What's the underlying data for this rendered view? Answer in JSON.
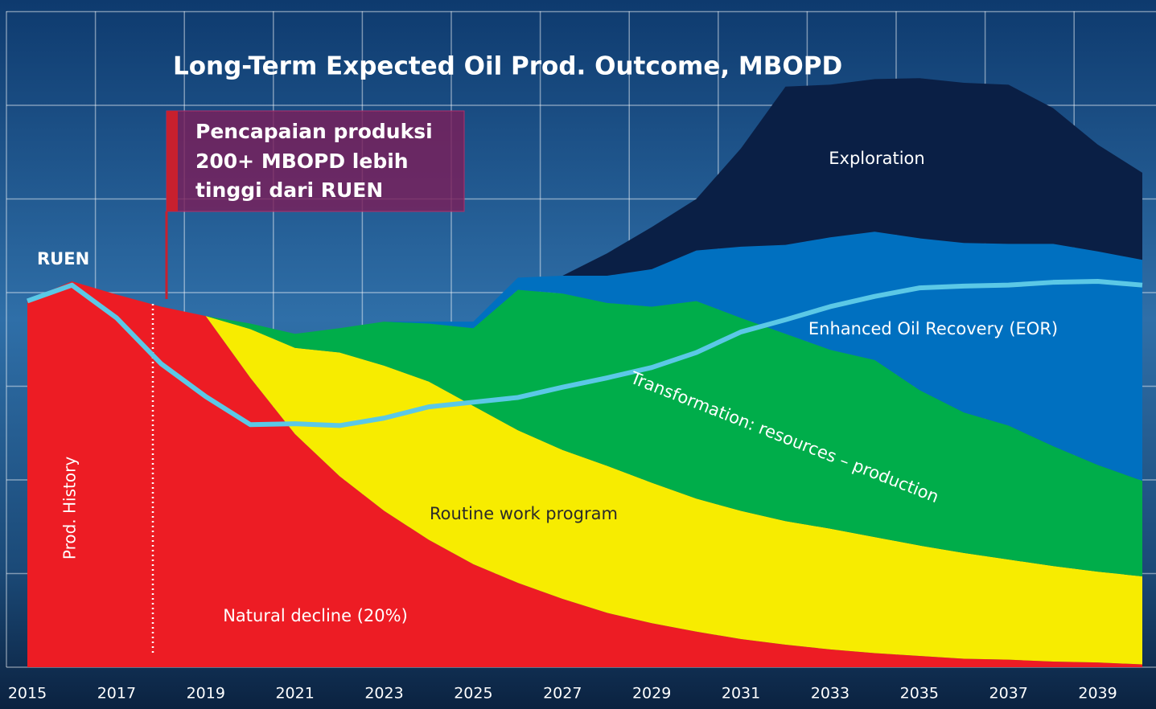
{
  "chart_data": {
    "type": "stacked_area",
    "title": "Long-Term Expected Oil Prod. Outcome, MBOPD",
    "annotation": {
      "lines": [
        "Pencapaian produksi",
        "200+ MBOPD lebih",
        "tinggi dari RUEN"
      ]
    },
    "history_label": "Prod. History",
    "x": [
      2015,
      2016,
      2017,
      2018,
      2019,
      2020,
      2021,
      2022,
      2023,
      2024,
      2025,
      2026,
      2027,
      2028,
      2029,
      2030,
      2031,
      2032,
      2033,
      2034,
      2035,
      2036,
      2037,
      2038,
      2039,
      2040
    ],
    "xlim": [
      2015,
      2040
    ],
    "xticks": [
      2015,
      2017,
      2019,
      2021,
      2023,
      2025,
      2027,
      2029,
      2031,
      2033,
      2035,
      2037,
      2039
    ],
    "ylim": [
      0,
      7
    ],
    "yticks": [
      0,
      1,
      2,
      3,
      4,
      5,
      6,
      7
    ],
    "grid": true,
    "series": [
      {
        "name": "Natural decline (20%)",
        "color": "#ed1c24",
        "values": [
          3.92,
          4.12,
          3.98,
          3.85,
          3.75,
          3.09,
          2.49,
          2.04,
          1.67,
          1.36,
          1.1,
          0.9,
          0.73,
          0.58,
          0.47,
          0.38,
          0.3,
          0.24,
          0.19,
          0.15,
          0.12,
          0.09,
          0.08,
          0.06,
          0.05,
          0.03
        ]
      },
      {
        "name": "Routine work program",
        "color": "#f7ec00",
        "values": [
          0,
          0,
          0,
          0,
          0,
          0.52,
          0.92,
          1.32,
          1.55,
          1.69,
          1.69,
          1.63,
          1.59,
          1.57,
          1.5,
          1.42,
          1.37,
          1.32,
          1.29,
          1.24,
          1.18,
          1.13,
          1.07,
          1.02,
          0.97,
          0.94
        ]
      },
      {
        "name": "Transformation: resources – production",
        "color": "#00ad4a",
        "values": [
          0,
          0,
          0,
          0,
          0,
          0.06,
          0.15,
          0.26,
          0.47,
          0.62,
          0.83,
          1.5,
          1.67,
          1.74,
          1.88,
          2.11,
          2.06,
          2.0,
          1.91,
          1.89,
          1.66,
          1.5,
          1.43,
          1.28,
          1.14,
          1.02
        ]
      },
      {
        "name": "Enhanced Oil Recovery (EOR)",
        "color": "#0070c0",
        "values": [
          0,
          0,
          0,
          0,
          0,
          0,
          0,
          0,
          0,
          0.02,
          0.07,
          0.13,
          0.19,
          0.29,
          0.4,
          0.54,
          0.76,
          0.95,
          1.2,
          1.37,
          1.62,
          1.81,
          1.94,
          2.16,
          2.28,
          2.36
        ]
      },
      {
        "name": "Exploration",
        "color": "#0a1f45",
        "values": [
          0,
          0,
          0,
          0,
          0,
          0,
          0,
          0,
          0,
          0,
          0,
          0,
          0,
          0.24,
          0.45,
          0.55,
          1.05,
          1.69,
          1.63,
          1.63,
          1.71,
          1.71,
          1.7,
          1.45,
          1.14,
          0.93
        ]
      }
    ],
    "line": {
      "name": "RUEN",
      "color": "#5bc8e6",
      "values": [
        3.91,
        4.08,
        3.73,
        3.24,
        2.89,
        2.59,
        2.6,
        2.58,
        2.66,
        2.78,
        2.83,
        2.88,
        2.99,
        3.09,
        3.2,
        3.36,
        3.58,
        3.71,
        3.85,
        3.96,
        4.05,
        4.07,
        4.08,
        4.11,
        4.12,
        4.08
      ]
    }
  }
}
